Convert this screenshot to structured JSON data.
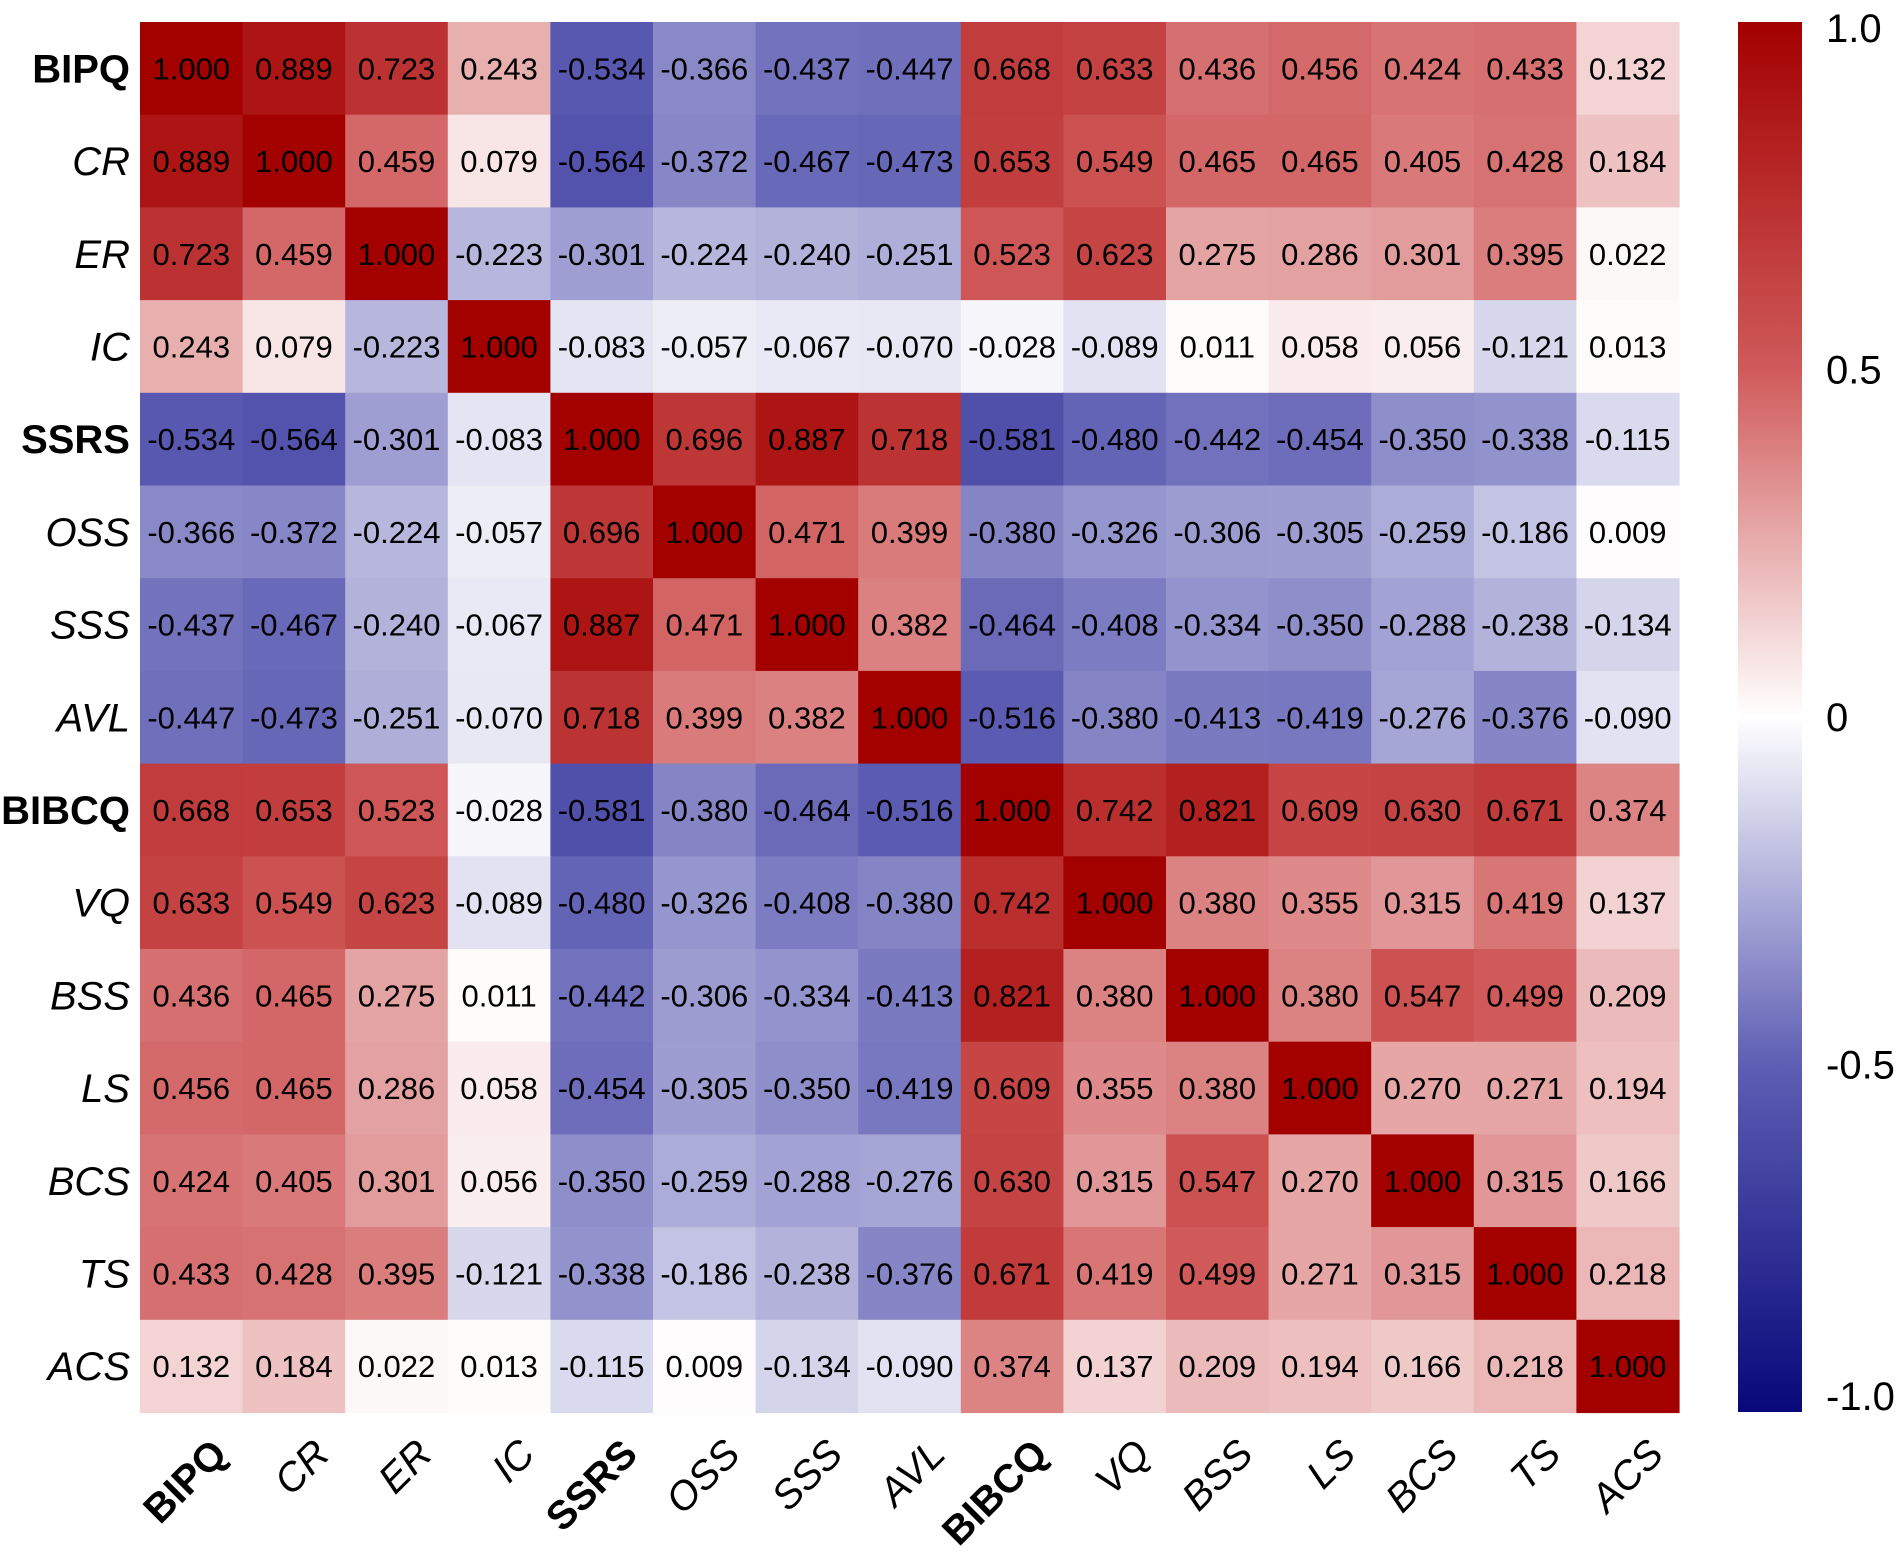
{
  "chart_data": {
    "type": "heatmap",
    "title": "",
    "variables": [
      "BIPQ",
      "CR",
      "ER",
      "IC",
      "SSRS",
      "OSS",
      "SSS",
      "AVL",
      "BIBCQ",
      "VQ",
      "BSS",
      "LS",
      "BCS",
      "TS",
      "ACS"
    ],
    "bold_variables": [
      "BIPQ",
      "SSRS",
      "BIBCQ"
    ],
    "matrix": [
      [
        "1.000",
        "0.889",
        "0.723",
        "0.243",
        "-0.534",
        "-0.366",
        "-0.437",
        "-0.447",
        "0.668",
        "0.633",
        "0.436",
        "0.456",
        "0.424",
        "0.433",
        "0.132"
      ],
      [
        "0.889",
        "1.000",
        "0.459",
        "0.079",
        "-0.564",
        "-0.372",
        "-0.467",
        "-0.473",
        "0.653",
        "0.549",
        "0.465",
        "0.465",
        "0.405",
        "0.428",
        "0.184"
      ],
      [
        "0.723",
        "0.459",
        "1.000",
        "-0.223",
        "-0.301",
        "-0.224",
        "-0.240",
        "-0.251",
        "0.523",
        "0.623",
        "0.275",
        "0.286",
        "0.301",
        "0.395",
        "0.022"
      ],
      [
        "0.243",
        "0.079",
        "-0.223",
        "1.000",
        "-0.083",
        "-0.057",
        "-0.067",
        "-0.070",
        "-0.028",
        "-0.089",
        "0.011",
        "0.058",
        "0.056",
        "-0.121",
        "0.013"
      ],
      [
        "-0.534",
        "-0.564",
        "-0.301",
        "-0.083",
        "1.000",
        "0.696",
        "0.887",
        "0.718",
        "-0.581",
        "-0.480",
        "-0.442",
        "-0.454",
        "-0.350",
        "-0.338",
        "-0.115"
      ],
      [
        "-0.366",
        "-0.372",
        "-0.224",
        "-0.057",
        "0.696",
        "1.000",
        "0.471",
        "0.399",
        "-0.380",
        "-0.326",
        "-0.306",
        "-0.305",
        "-0.259",
        "-0.186",
        "0.009"
      ],
      [
        "-0.437",
        "-0.467",
        "-0.240",
        "-0.067",
        "0.887",
        "0.471",
        "1.000",
        "0.382",
        "-0.464",
        "-0.408",
        "-0.334",
        "-0.350",
        "-0.288",
        "-0.238",
        "-0.134"
      ],
      [
        "-0.447",
        "-0.473",
        "-0.251",
        "-0.070",
        "0.718",
        "0.399",
        "0.382",
        "1.000",
        "-0.516",
        "-0.380",
        "-0.413",
        "-0.419",
        "-0.276",
        "-0.376",
        "-0.090"
      ],
      [
        "0.668",
        "0.653",
        "0.523",
        "-0.028",
        "-0.581",
        "-0.380",
        "-0.464",
        "-0.516",
        "1.000",
        "0.742",
        "0.821",
        "0.609",
        "0.630",
        "0.671",
        "0.374"
      ],
      [
        "0.633",
        "0.549",
        "0.623",
        "-0.089",
        "-0.480",
        "-0.326",
        "-0.408",
        "-0.380",
        "0.742",
        "1.000",
        "0.380",
        "0.355",
        "0.315",
        "0.419",
        "0.137"
      ],
      [
        "0.436",
        "0.465",
        "0.275",
        "0.011",
        "-0.442",
        "-0.306",
        "-0.334",
        "-0.413",
        "0.821",
        "0.380",
        "1.000",
        "0.380",
        "0.547",
        "0.499",
        "0.209"
      ],
      [
        "0.456",
        "0.465",
        "0.286",
        "0.058",
        "-0.454",
        "-0.305",
        "-0.350",
        "-0.419",
        "0.609",
        "0.355",
        "0.380",
        "1.000",
        "0.270",
        "0.271",
        "0.194"
      ],
      [
        "0.424",
        "0.405",
        "0.301",
        "0.056",
        "-0.350",
        "-0.259",
        "-0.288",
        "-0.276",
        "0.630",
        "0.315",
        "0.547",
        "0.270",
        "1.000",
        "0.315",
        "0.166"
      ],
      [
        "0.433",
        "0.428",
        "0.395",
        "-0.121",
        "-0.338",
        "-0.186",
        "-0.238",
        "-0.376",
        "0.671",
        "0.419",
        "0.499",
        "0.271",
        "0.315",
        "1.000",
        "0.218"
      ],
      [
        "0.132",
        "0.184",
        "0.022",
        "0.013",
        "-0.115",
        "0.009",
        "-0.134",
        "-0.090",
        "0.374",
        "0.137",
        "0.209",
        "0.194",
        "0.166",
        "0.218",
        "1.000"
      ]
    ],
    "colorbar": {
      "range": [
        -1.0,
        1.0
      ],
      "ticks": [
        {
          "value": 1.0,
          "label": "1.0"
        },
        {
          "value": 0.5,
          "label": "0.5"
        },
        {
          "value": 0.0,
          "label": "0"
        },
        {
          "value": -0.5,
          "label": "-0.5"
        },
        {
          "value": -1.0,
          "label": "-1.0"
        }
      ],
      "colors": {
        "low": "#08087a",
        "low_mid": "#5e5eb4",
        "mid": "#ffffff",
        "high_mid": "#d05a5a",
        "high": "#a30000"
      }
    },
    "xlabel_rotation": "45 degrees",
    "legend_position": "right"
  }
}
